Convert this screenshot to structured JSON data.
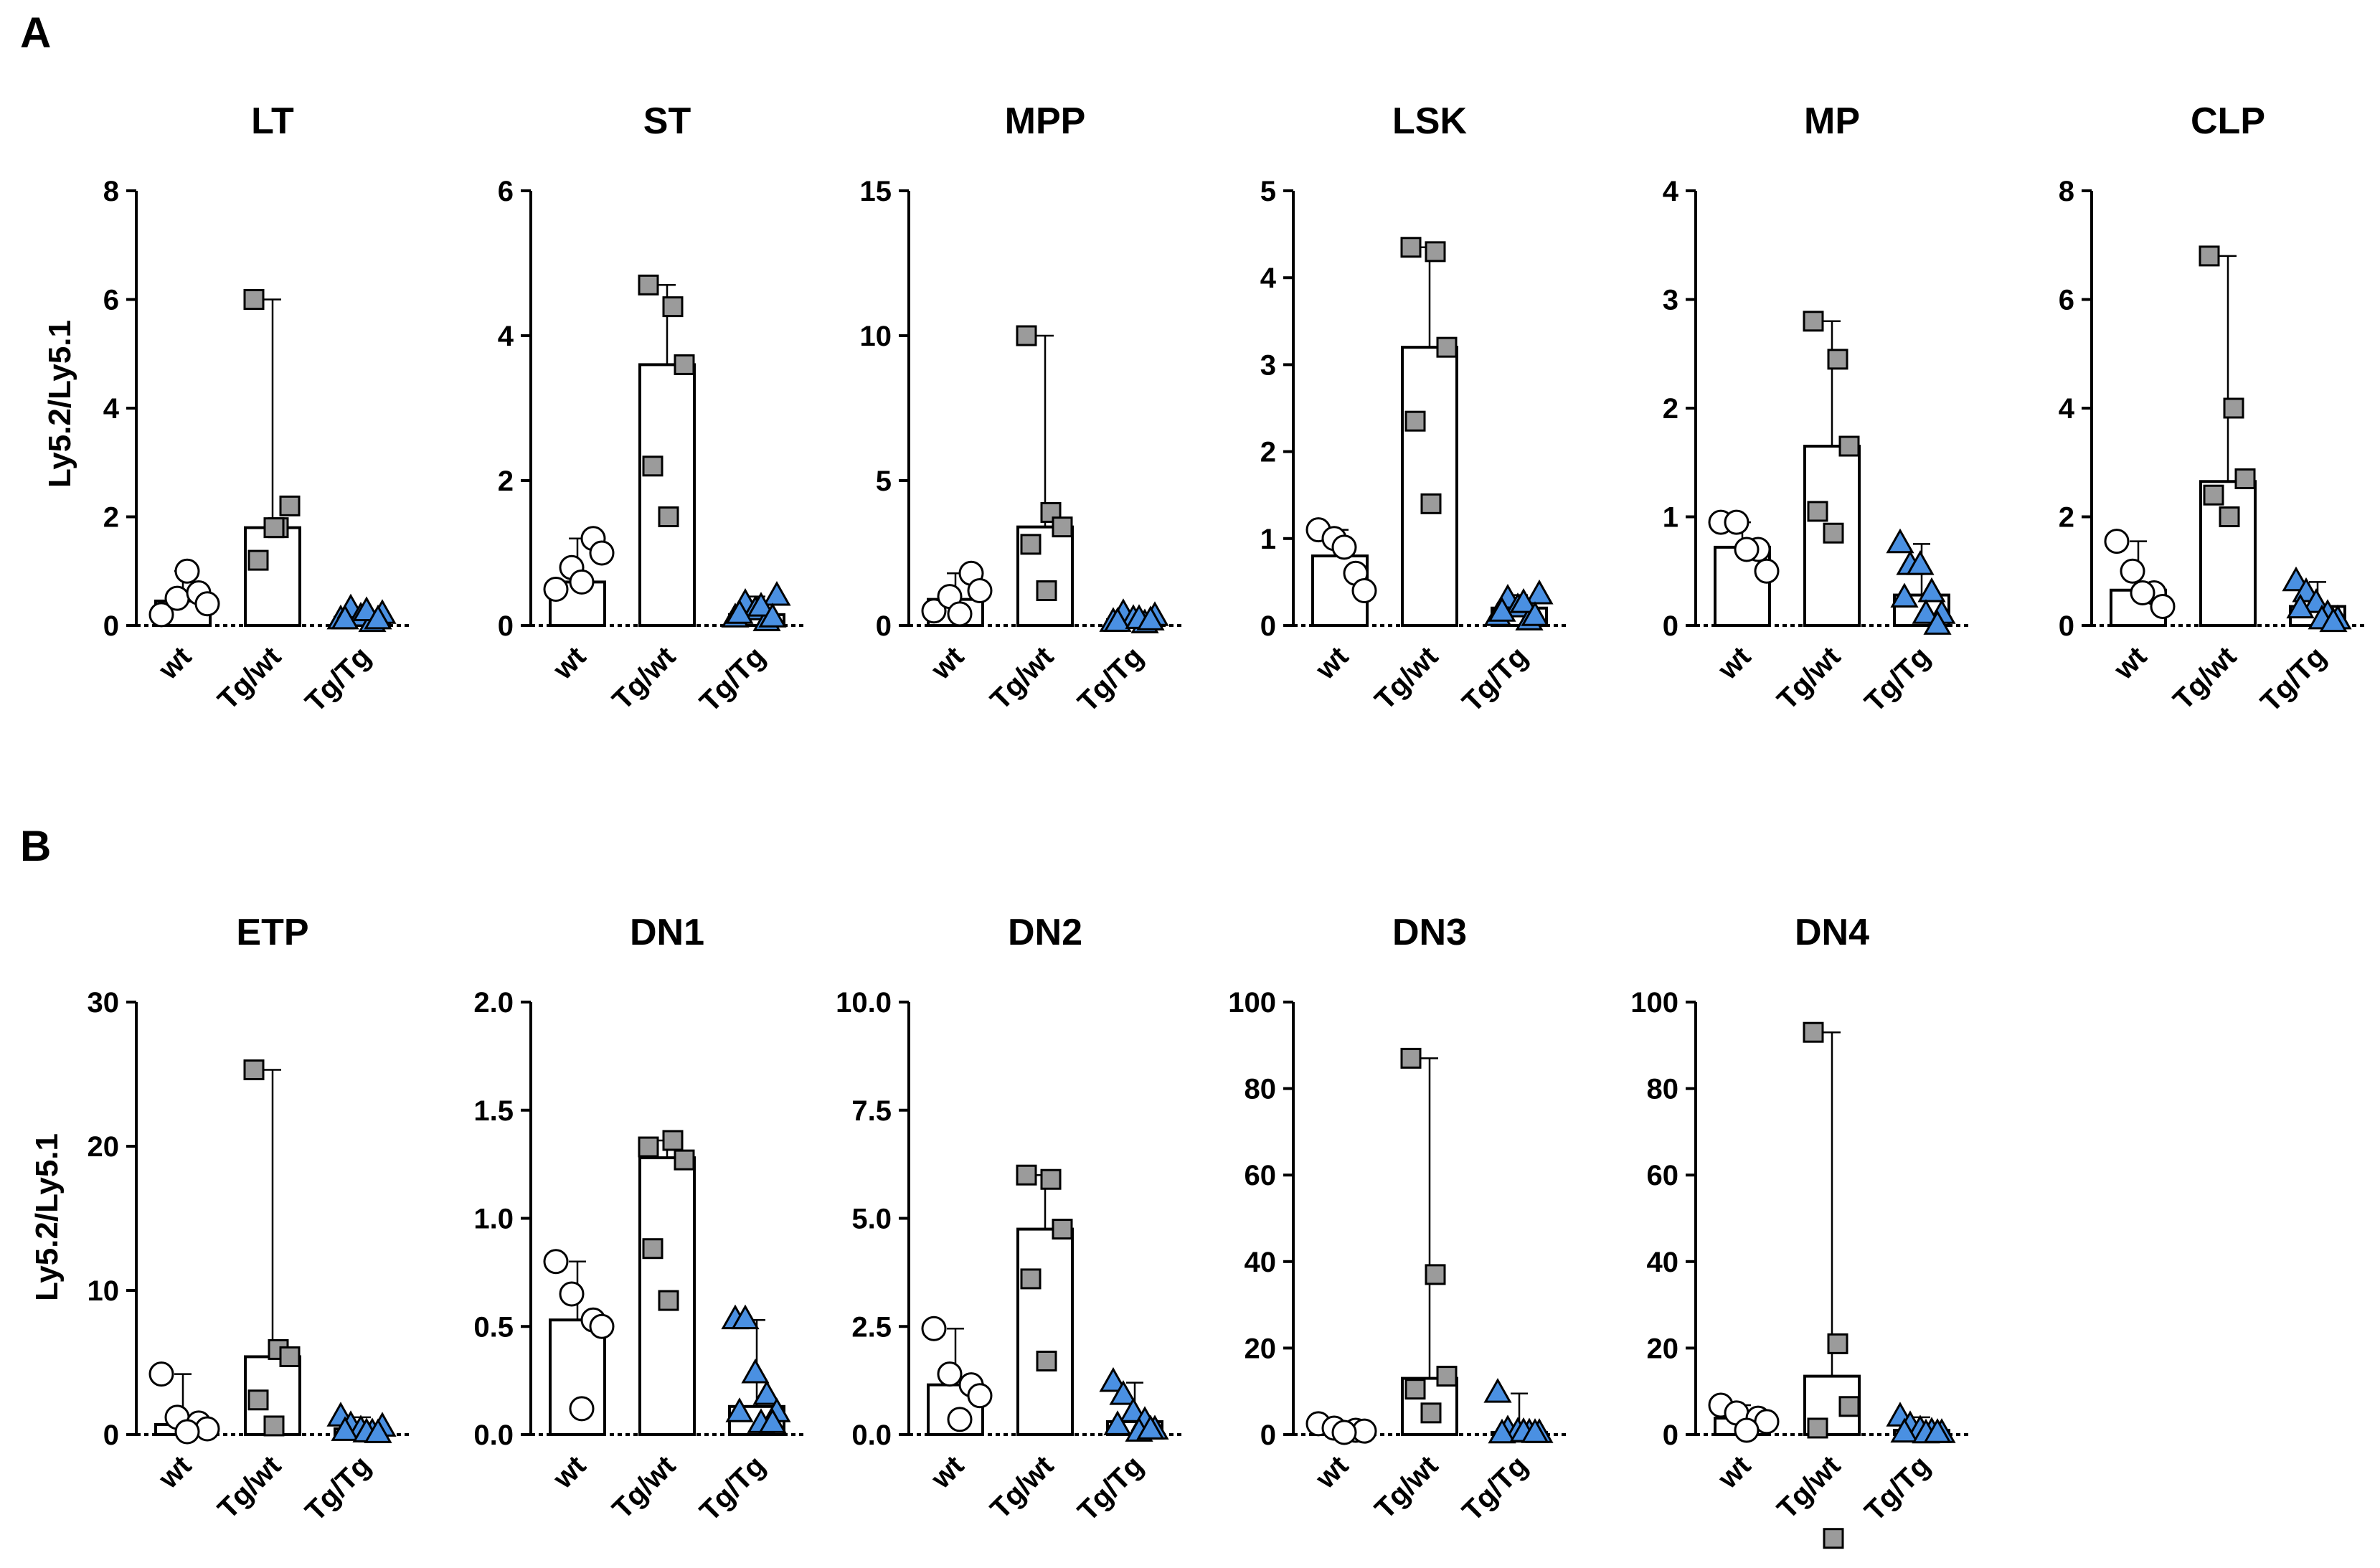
{
  "panels": [
    {
      "letter": "A",
      "ylabel": "Ly5.2/Ly5.1"
    },
    {
      "letter": "B",
      "ylabel": "Ly5.2/Ly5.1"
    }
  ],
  "categories": [
    "wt",
    "Tg/wt",
    "Tg/Tg"
  ],
  "colors": {
    "wt": "#ffffff",
    "tg_wt": "#9b9b9b",
    "tg_tg": "#4a90e2",
    "stroke": "#000000"
  },
  "chart_data": [
    {
      "type": "bar",
      "panel": "A",
      "title": "LT",
      "ylim": [
        0,
        8
      ],
      "yticks": [
        "0",
        "2",
        "4",
        "6",
        "8"
      ],
      "categories": [
        "wt",
        "Tg/wt",
        "Tg/Tg"
      ],
      "bar_values": [
        0.45,
        1.8,
        0.15
      ],
      "series": [
        {
          "category": "wt",
          "marker": "circle",
          "points": [
            0.2,
            0.5,
            0.6,
            0.4,
            1.0
          ]
        },
        {
          "category": "Tg/wt",
          "marker": "square",
          "points": [
            6.0,
            1.8,
            2.2,
            1.2,
            1.8
          ]
        },
        {
          "category": "Tg/Tg",
          "marker": "triangle",
          "points": [
            0.1,
            0.3,
            0.15,
            0.05,
            0.2,
            0.1,
            0.25,
            0.1
          ]
        }
      ]
    },
    {
      "type": "bar",
      "panel": "A",
      "title": "ST",
      "ylim": [
        0,
        6
      ],
      "yticks": [
        "0",
        "2",
        "4",
        "6"
      ],
      "categories": [
        "wt",
        "Tg/wt",
        "Tg/Tg"
      ],
      "bar_values": [
        0.6,
        3.6,
        0.15
      ],
      "series": [
        {
          "category": "wt",
          "marker": "circle",
          "points": [
            0.5,
            0.8,
            1.2,
            1.0,
            0.6
          ]
        },
        {
          "category": "Tg/wt",
          "marker": "square",
          "points": [
            4.7,
            4.4,
            3.6,
            2.2,
            1.5
          ]
        },
        {
          "category": "Tg/Tg",
          "marker": "triangle",
          "points": [
            0.1,
            0.3,
            0.2,
            0.05,
            0.4,
            0.15,
            0.25,
            0.1
          ]
        }
      ]
    },
    {
      "type": "bar",
      "panel": "A",
      "title": "MPP",
      "ylim": [
        0,
        15
      ],
      "yticks": [
        "0",
        "5",
        "10",
        "15"
      ],
      "categories": [
        "wt",
        "Tg/wt",
        "Tg/Tg"
      ],
      "bar_values": [
        0.9,
        3.4,
        0.2
      ],
      "series": [
        {
          "category": "wt",
          "marker": "circle",
          "points": [
            0.5,
            1.0,
            1.8,
            1.2,
            0.4
          ]
        },
        {
          "category": "Tg/wt",
          "marker": "square",
          "points": [
            10.0,
            3.9,
            3.4,
            2.8,
            1.2
          ]
        },
        {
          "category": "Tg/Tg",
          "marker": "triangle",
          "points": [
            0.1,
            0.4,
            0.2,
            0.05,
            0.3,
            0.1,
            0.2,
            0.15
          ]
        }
      ]
    },
    {
      "type": "bar",
      "panel": "A",
      "title": "LSK",
      "ylim": [
        0,
        5
      ],
      "yticks": [
        "0",
        "1",
        "2",
        "3",
        "4",
        "5"
      ],
      "categories": [
        "wt",
        "Tg/wt",
        "Tg/Tg"
      ],
      "bar_values": [
        0.8,
        3.2,
        0.2
      ],
      "series": [
        {
          "category": "wt",
          "marker": "circle",
          "points": [
            1.1,
            1.0,
            0.6,
            0.4,
            0.9
          ]
        },
        {
          "category": "Tg/wt",
          "marker": "square",
          "points": [
            4.35,
            4.3,
            3.2,
            2.35,
            1.4
          ]
        },
        {
          "category": "Tg/Tg",
          "marker": "triangle",
          "points": [
            0.1,
            0.3,
            0.2,
            0.05,
            0.35,
            0.15,
            0.25,
            0.1
          ]
        }
      ]
    },
    {
      "type": "bar",
      "panel": "A",
      "title": "MP",
      "ylim": [
        0,
        4
      ],
      "yticks": [
        "0",
        "1",
        "2",
        "3",
        "4"
      ],
      "categories": [
        "wt",
        "Tg/wt",
        "Tg/Tg"
      ],
      "bar_values": [
        0.72,
        1.65,
        0.28
      ],
      "series": [
        {
          "category": "wt",
          "marker": "circle",
          "points": [
            0.95,
            0.95,
            0.7,
            0.5,
            0.7
          ]
        },
        {
          "category": "Tg/wt",
          "marker": "square",
          "points": [
            2.8,
            2.45,
            1.65,
            1.05,
            0.85
          ]
        },
        {
          "category": "Tg/Tg",
          "marker": "triangle",
          "points": [
            0.75,
            0.55,
            0.55,
            0.3,
            0.1,
            0.25,
            0.1,
            0.0
          ]
        }
      ]
    },
    {
      "type": "bar",
      "panel": "A",
      "title": "CLP",
      "ylim": [
        0,
        8
      ],
      "yticks": [
        "0",
        "2",
        "4",
        "6",
        "8"
      ],
      "categories": [
        "wt",
        "Tg/wt",
        "Tg/Tg"
      ],
      "bar_values": [
        0.65,
        2.65,
        0.35
      ],
      "series": [
        {
          "category": "wt",
          "marker": "circle",
          "points": [
            1.55,
            1.0,
            0.6,
            0.35,
            0.6
          ]
        },
        {
          "category": "Tg/wt",
          "marker": "square",
          "points": [
            6.8,
            4.0,
            2.7,
            2.4,
            2.0
          ]
        },
        {
          "category": "Tg/Tg",
          "marker": "triangle",
          "points": [
            0.8,
            0.6,
            0.4,
            0.2,
            0.1,
            0.3,
            0.1,
            0.05
          ]
        }
      ]
    },
    {
      "type": "bar",
      "panel": "B",
      "title": "ETP",
      "ylim": [
        0,
        30
      ],
      "yticks": [
        "0",
        "10",
        "20",
        "30"
      ],
      "categories": [
        "wt",
        "Tg/wt",
        "Tg/Tg"
      ],
      "bar_values": [
        0.7,
        5.4,
        0.4
      ],
      "series": [
        {
          "category": "wt",
          "marker": "circle",
          "points": [
            4.2,
            1.2,
            0.8,
            0.4,
            0.2
          ]
        },
        {
          "category": "Tg/wt",
          "marker": "square",
          "points": [
            25.3,
            5.9,
            5.4,
            2.4,
            0.6
          ]
        },
        {
          "category": "Tg/Tg",
          "marker": "triangle",
          "points": [
            1.2,
            0.6,
            0.3,
            0.1,
            0.5,
            0.2,
            0.1,
            0.05
          ]
        }
      ]
    },
    {
      "type": "bar",
      "panel": "B",
      "title": "DN1",
      "ylim": [
        0,
        2.0
      ],
      "yticks": [
        "0.0",
        "0.5",
        "1.0",
        "1.5",
        "2.0"
      ],
      "categories": [
        "wt",
        "Tg/wt",
        "Tg/Tg"
      ],
      "bar_values": [
        0.53,
        1.28,
        0.13
      ],
      "series": [
        {
          "category": "wt",
          "marker": "circle",
          "points": [
            0.8,
            0.65,
            0.53,
            0.5,
            0.12
          ]
        },
        {
          "category": "Tg/wt",
          "marker": "square",
          "points": [
            1.33,
            1.36,
            1.27,
            0.86,
            0.62
          ]
        },
        {
          "category": "Tg/Tg",
          "marker": "triangle",
          "points": [
            0.53,
            0.53,
            0.28,
            0.18,
            0.1,
            0.1,
            0.05,
            0.05
          ]
        }
      ]
    },
    {
      "type": "bar",
      "panel": "B",
      "title": "DN2",
      "ylim": [
        0,
        10.0
      ],
      "yticks": [
        "0.0",
        "2.5",
        "5.0",
        "7.5",
        "10.0"
      ],
      "categories": [
        "wt",
        "Tg/wt",
        "Tg/Tg"
      ],
      "bar_values": [
        1.15,
        4.75,
        0.3
      ],
      "series": [
        {
          "category": "wt",
          "marker": "circle",
          "points": [
            2.45,
            1.4,
            1.15,
            0.9,
            0.35
          ]
        },
        {
          "category": "Tg/wt",
          "marker": "square",
          "points": [
            6.0,
            5.9,
            4.75,
            3.6,
            1.7
          ]
        },
        {
          "category": "Tg/Tg",
          "marker": "triangle",
          "points": [
            1.2,
            0.9,
            0.5,
            0.3,
            0.1,
            0.2,
            0.05,
            0.1
          ]
        }
      ]
    },
    {
      "type": "bar",
      "panel": "B",
      "title": "DN3",
      "ylim": [
        0,
        100
      ],
      "yticks": [
        "0",
        "20",
        "40",
        "60",
        "80",
        "100"
      ],
      "categories": [
        "wt",
        "Tg/wt",
        "Tg/Tg"
      ],
      "bar_values": [
        0.8,
        13.0,
        0.5
      ],
      "series": [
        {
          "category": "wt",
          "marker": "circle",
          "points": [
            2.5,
            1.5,
            1.0,
            0.8,
            0.5
          ]
        },
        {
          "category": "Tg/wt",
          "marker": "square",
          "points": [
            87.0,
            37.0,
            13.5,
            10.5,
            5.0
          ]
        },
        {
          "category": "Tg/Tg",
          "marker": "triangle",
          "points": [
            9.5,
            1.0,
            0.5,
            0.3,
            0.2,
            0.1,
            0.4,
            0.2
          ]
        }
      ]
    },
    {
      "type": "bar",
      "panel": "B",
      "title": "DN4",
      "ylim": [
        0,
        100
      ],
      "yticks": [
        "0",
        "20",
        "40",
        "60",
        "80",
        "100"
      ],
      "categories": [
        "wt",
        "Tg/wt",
        "Tg/Tg"
      ],
      "bar_values": [
        3.8,
        13.5,
        1.0
      ],
      "series": [
        {
          "category": "wt",
          "marker": "circle",
          "points": [
            6.8,
            5.0,
            3.8,
            3.0,
            1.0
          ]
        },
        {
          "category": "Tg/wt",
          "marker": "square",
          "points": [
            93.0,
            21.0,
            6.5,
            1.5,
            -24.0
          ]
        },
        {
          "category": "Tg/Tg",
          "marker": "triangle",
          "points": [
            4.0,
            2.0,
            1.0,
            0.5,
            0.2,
            0.3,
            0.1,
            0.2
          ]
        }
      ]
    }
  ]
}
